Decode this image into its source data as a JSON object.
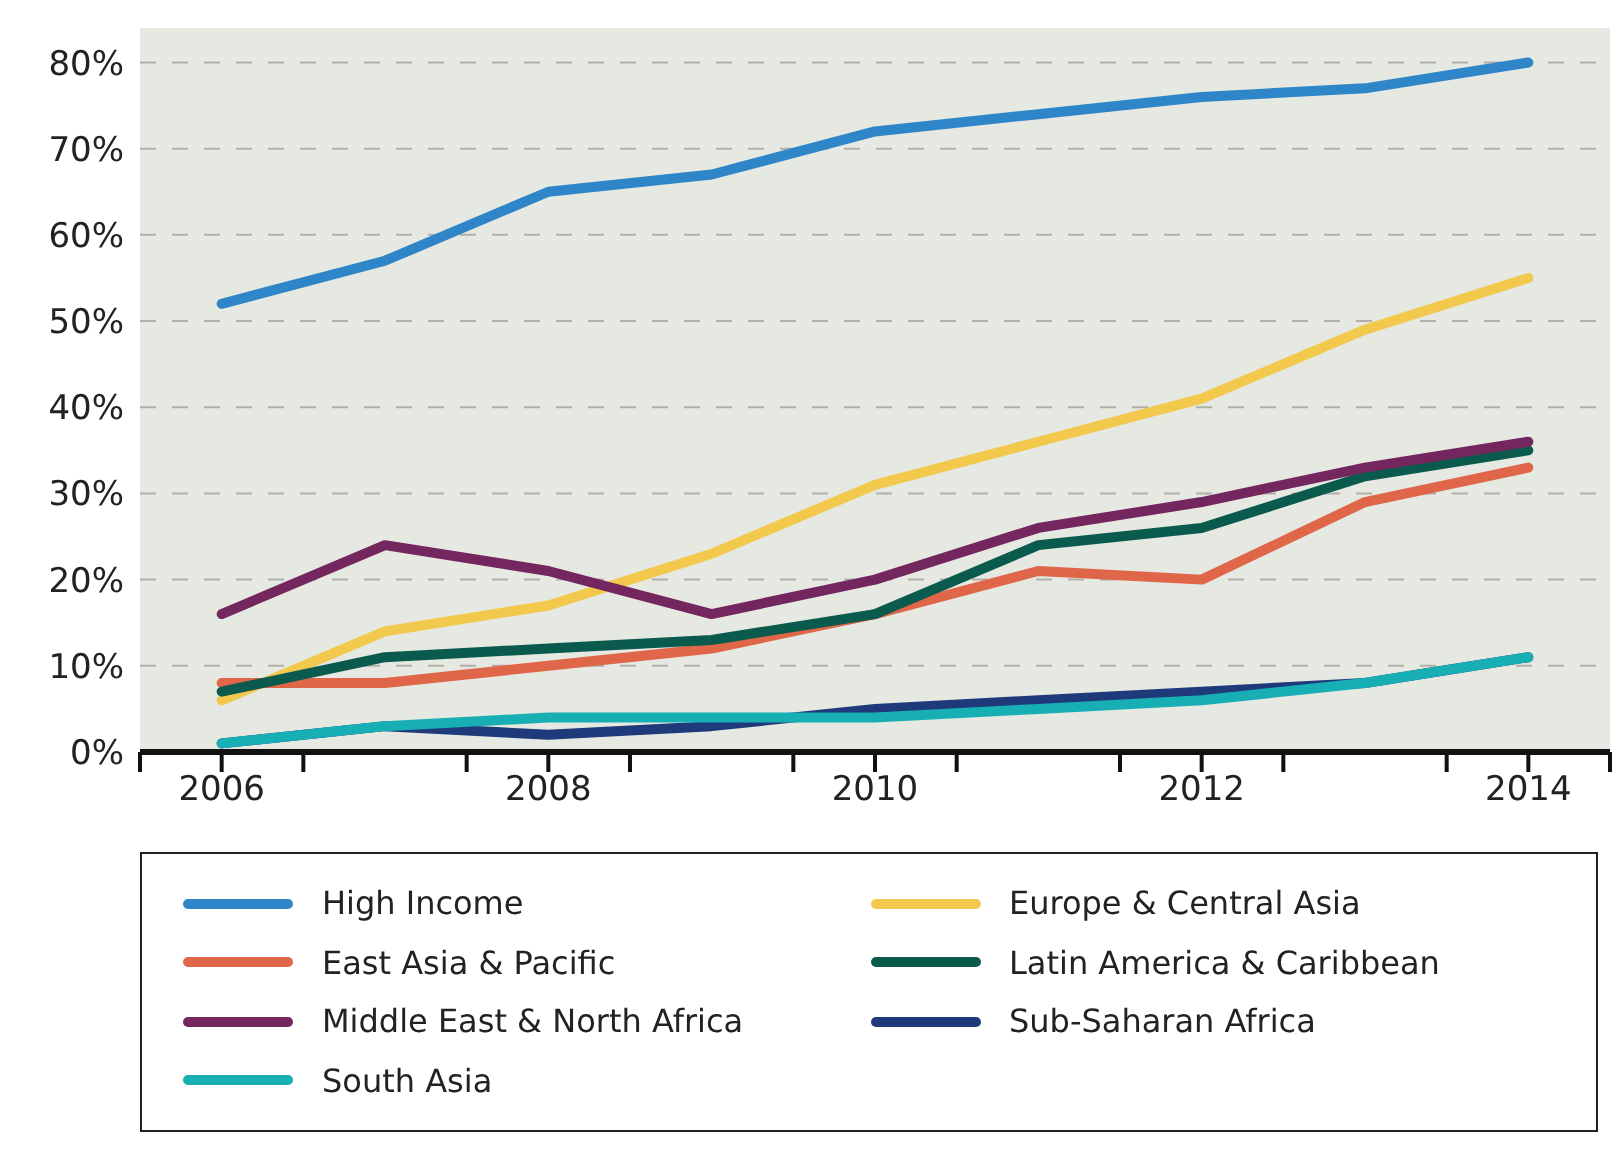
{
  "chart_data": {
    "type": "line",
    "x": [
      2006,
      2007,
      2008,
      2009,
      2010,
      2011,
      2012,
      2013,
      2014
    ],
    "xlim": [
      2005.5,
      2014.5
    ],
    "xticks": [
      {
        "value": 2005.5,
        "label": null
      },
      2006,
      {
        "value": 2006.5,
        "label": null
      },
      {
        "value": 2007.5,
        "label": null
      },
      2008,
      {
        "value": 2008.5,
        "label": null
      },
      {
        "value": 2009.5,
        "label": null
      },
      2010,
      {
        "value": 2010.5,
        "label": null
      },
      {
        "value": 2011.5,
        "label": null
      },
      2012,
      {
        "value": 2012.5,
        "label": null
      },
      {
        "value": 2013.5,
        "label": null
      },
      2014,
      {
        "value": 2014.5,
        "label": null
      }
    ],
    "ylim": [
      0,
      84
    ],
    "yticks": [
      {
        "value": 0,
        "label": "0%"
      },
      {
        "value": 10,
        "label": "10%"
      },
      {
        "value": 20,
        "label": "20%"
      },
      {
        "value": 30,
        "label": "30%"
      },
      {
        "value": 40,
        "label": "40%"
      },
      {
        "value": 50,
        "label": "50%"
      },
      {
        "value": 60,
        "label": "60%"
      },
      {
        "value": 70,
        "label": "70%"
      },
      {
        "value": 80,
        "label": "80%"
      }
    ],
    "grid": "y",
    "legend": "bottom",
    "marker": "none",
    "line_style": "solid",
    "series": [
      {
        "name": "High Income",
        "color": "#2e86c8",
        "values": [
          52,
          57,
          65,
          67,
          72,
          74,
          76,
          77,
          80
        ]
      },
      {
        "name": "Europe & Central Asia",
        "color": "#f2c94c",
        "values": [
          6,
          14,
          17,
          23,
          31,
          36,
          41,
          49,
          55
        ]
      },
      {
        "name": "East Asia & Pacific",
        "color": "#e0664a",
        "values": [
          8,
          8,
          10,
          12,
          16,
          21,
          20,
          29,
          33
        ]
      },
      {
        "name": "Latin America & Caribbean",
        "color": "#0b5a4e",
        "values": [
          7,
          11,
          12,
          13,
          16,
          24,
          26,
          32,
          35
        ]
      },
      {
        "name": "Middle East & North Africa",
        "color": "#74265f",
        "values": [
          16,
          24,
          21,
          16,
          20,
          26,
          29,
          33,
          36
        ]
      },
      {
        "name": "Sub-Saharan Africa",
        "color": "#1f3a7a",
        "values": [
          1,
          3,
          2,
          3,
          5,
          6,
          7,
          8,
          11
        ]
      },
      {
        "name": "South Asia",
        "color": "#17aeb4",
        "values": [
          1,
          3,
          4,
          4,
          4,
          5,
          6,
          8,
          11
        ]
      }
    ]
  }
}
